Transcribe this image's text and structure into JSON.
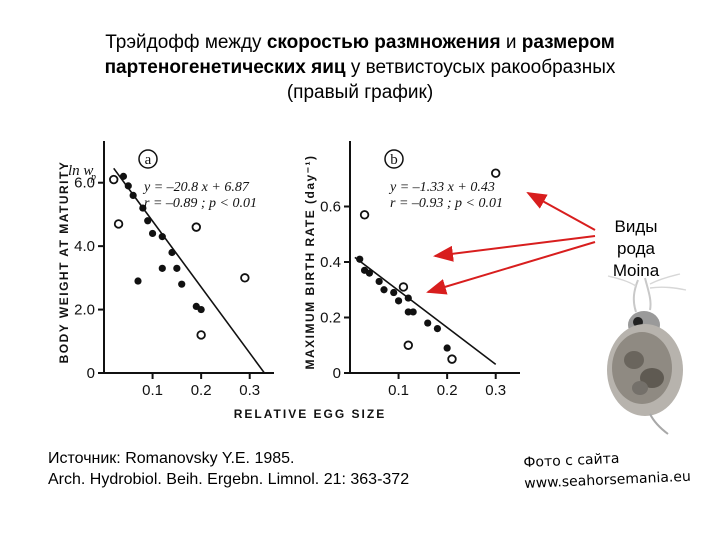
{
  "title": {
    "line1_a": "Трэйдофф между ",
    "line1_b": "скоростью размножения",
    "line1_c": " и ",
    "line1_d": "размером",
    "line2_a": "партеногенетических яиц",
    "line2_b": " у ветвистоусых ракообразных",
    "line3": "(правый график)"
  },
  "annotation": {
    "line1": "Виды рода",
    "line2": "Moina"
  },
  "source": {
    "line1": "Источник: Romanovsky Y.E. 1985.",
    "line2": "Arch. Hydrobiol. Beih. Ergebn. Limnol. 21: 363-372"
  },
  "photo_credit": {
    "line1": "Фото с сайта",
    "line2": "www.seahorsemania.eu"
  },
  "chart_data": [
    {
      "type": "scatter",
      "panel": "a",
      "title": "",
      "xlabel": "RELATIVE EGG SIZE",
      "ylabel": "BODY WEIGHT AT MATURITY",
      "yaxis_symbol": "ln w",
      "yaxis_symbol_sub": "p",
      "xlim": [
        0,
        0.35
      ],
      "ylim": [
        0,
        7.0
      ],
      "xticks": [
        0.1,
        0.2,
        0.3
      ],
      "xtick_labels": [
        "0.1",
        "0.2",
        "0.3"
      ],
      "yticks": [
        0,
        2.0,
        4.0,
        6.0
      ],
      "ytick_labels": [
        "0",
        "2.0",
        "4.0",
        "6.0"
      ],
      "equation": "y = –20.8 x + 6.87",
      "stats": "r = –0.89 ; p < 0.01",
      "regression": {
        "slope": -20.8,
        "intercept": 6.87,
        "x_range": [
          0.02,
          0.33
        ]
      },
      "points_filled": [
        {
          "x": 0.04,
          "y": 6.2
        },
        {
          "x": 0.05,
          "y": 5.9
        },
        {
          "x": 0.06,
          "y": 5.6
        },
        {
          "x": 0.08,
          "y": 5.2
        },
        {
          "x": 0.09,
          "y": 4.8
        },
        {
          "x": 0.1,
          "y": 4.4
        },
        {
          "x": 0.12,
          "y": 4.3
        },
        {
          "x": 0.12,
          "y": 3.3
        },
        {
          "x": 0.14,
          "y": 3.8
        },
        {
          "x": 0.15,
          "y": 3.3
        },
        {
          "x": 0.16,
          "y": 2.8
        },
        {
          "x": 0.19,
          "y": 2.1
        },
        {
          "x": 0.2,
          "y": 2.0
        },
        {
          "x": 0.07,
          "y": 2.9
        }
      ],
      "points_open": [
        {
          "x": 0.02,
          "y": 6.1
        },
        {
          "x": 0.03,
          "y": 4.7
        },
        {
          "x": 0.19,
          "y": 4.6
        },
        {
          "x": 0.2,
          "y": 1.2
        },
        {
          "x": 0.29,
          "y": 3.0
        }
      ]
    },
    {
      "type": "scatter",
      "panel": "b",
      "title": "",
      "xlabel": "RELATIVE EGG SIZE",
      "ylabel": "MAXIMUM BIRTH RATE (day⁻¹)",
      "xlim": [
        0,
        0.35
      ],
      "ylim": [
        0,
        0.8
      ],
      "xticks": [
        0.1,
        0.2,
        0.3
      ],
      "xtick_labels": [
        "0.1",
        "0.2",
        "0.3"
      ],
      "yticks": [
        0,
        0.2,
        0.4,
        0.6
      ],
      "ytick_labels": [
        "0",
        "0.2",
        "0.4",
        "0.6"
      ],
      "equation": "y = –1.33 x + 0.43",
      "stats": "r = –0.93 ; p < 0.01",
      "regression": {
        "slope": -1.33,
        "intercept": 0.43,
        "x_range": [
          0.01,
          0.3
        ]
      },
      "points_filled": [
        {
          "x": 0.02,
          "y": 0.41
        },
        {
          "x": 0.03,
          "y": 0.37
        },
        {
          "x": 0.04,
          "y": 0.36
        },
        {
          "x": 0.06,
          "y": 0.33
        },
        {
          "x": 0.07,
          "y": 0.3
        },
        {
          "x": 0.09,
          "y": 0.29
        },
        {
          "x": 0.1,
          "y": 0.26
        },
        {
          "x": 0.12,
          "y": 0.22
        },
        {
          "x": 0.13,
          "y": 0.22
        },
        {
          "x": 0.16,
          "y": 0.18
        },
        {
          "x": 0.18,
          "y": 0.16
        },
        {
          "x": 0.2,
          "y": 0.09
        },
        {
          "x": 0.12,
          "y": 0.27
        }
      ],
      "points_open": [
        {
          "x": 0.03,
          "y": 0.57
        },
        {
          "x": 0.11,
          "y": 0.31
        },
        {
          "x": 0.12,
          "y": 0.1
        },
        {
          "x": 0.21,
          "y": 0.05
        },
        {
          "x": 0.3,
          "y": 0.72
        }
      ]
    }
  ],
  "colors": {
    "arrow": "#d81e1e",
    "background": "#ffffff",
    "ink": "#111111"
  },
  "icons": {
    "photo": "moina-daphnia-photo"
  }
}
